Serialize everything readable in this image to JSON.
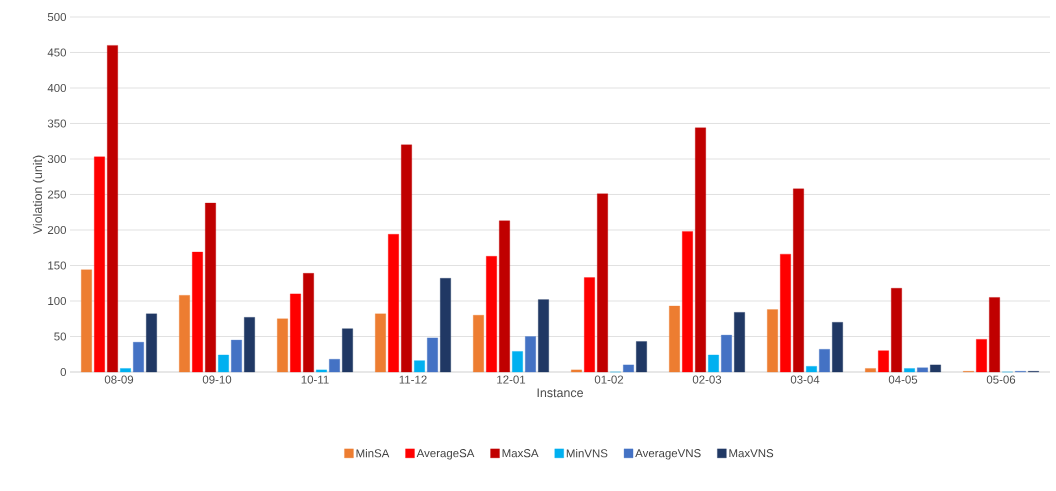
{
  "chart_data": {
    "type": "bar",
    "xlabel": "Instance",
    "ylabel": "Violation (unit)",
    "categories": [
      "08-09",
      "09-10",
      "10-11",
      "11-12",
      "12-01",
      "01-02",
      "02-03",
      "03-04",
      "04-05",
      "05-06"
    ],
    "series": [
      {
        "name": "MinSA",
        "color": "#ed7d31",
        "values": [
          144,
          108,
          75,
          82,
          80,
          3,
          93,
          88,
          5,
          1
        ]
      },
      {
        "name": "AverageSA",
        "color": "#ff0000",
        "values": [
          303,
          169,
          110,
          194,
          163,
          133,
          198,
          166,
          30,
          46
        ]
      },
      {
        "name": "MaxSA",
        "color": "#c00000",
        "values": [
          460,
          238,
          139,
          320,
          213,
          251,
          344,
          258,
          118,
          105
        ]
      },
      {
        "name": "MinVNS",
        "color": "#00b0f0",
        "values": [
          5,
          24,
          3,
          16,
          29,
          0,
          24,
          8,
          5,
          0
        ]
      },
      {
        "name": "AverageVNS",
        "color": "#4472c4",
        "values": [
          42,
          45,
          18,
          48,
          50,
          10,
          52,
          32,
          6,
          1
        ]
      },
      {
        "name": "MaxVNS",
        "color": "#203864",
        "values": [
          82,
          77,
          61,
          132,
          102,
          43,
          84,
          70,
          10,
          1
        ]
      }
    ],
    "ylim": [
      0,
      500
    ],
    "yticks": [
      0,
      50,
      100,
      150,
      200,
      250,
      300,
      350,
      400,
      450,
      500
    ],
    "grid": "y",
    "legend": "bottom"
  }
}
